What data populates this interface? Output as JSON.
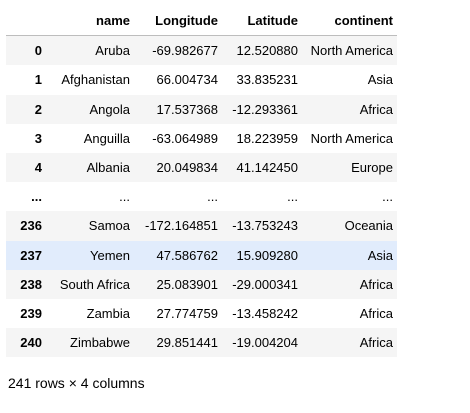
{
  "table": {
    "columns": [
      "name",
      "Longitude",
      "Latitude",
      "continent"
    ],
    "rows": [
      {
        "index": "0",
        "name": "Aruba",
        "longitude": "-69.982677",
        "latitude": "12.520880",
        "continent": "North America"
      },
      {
        "index": "1",
        "name": "Afghanistan",
        "longitude": "66.004734",
        "latitude": "33.835231",
        "continent": "Asia"
      },
      {
        "index": "2",
        "name": "Angola",
        "longitude": "17.537368",
        "latitude": "-12.293361",
        "continent": "Africa"
      },
      {
        "index": "3",
        "name": "Anguilla",
        "longitude": "-63.064989",
        "latitude": "18.223959",
        "continent": "North America"
      },
      {
        "index": "4",
        "name": "Albania",
        "longitude": "20.049834",
        "latitude": "41.142450",
        "continent": "Europe"
      },
      {
        "index": "...",
        "name": "...",
        "longitude": "...",
        "latitude": "...",
        "continent": "..."
      },
      {
        "index": "236",
        "name": "Samoa",
        "longitude": "-172.164851",
        "latitude": "-13.753243",
        "continent": "Oceania"
      },
      {
        "index": "237",
        "name": "Yemen",
        "longitude": "47.586762",
        "latitude": "15.909280",
        "continent": "Asia"
      },
      {
        "index": "238",
        "name": "South Africa",
        "longitude": "25.083901",
        "latitude": "-29.000341",
        "continent": "Africa"
      },
      {
        "index": "239",
        "name": "Zambia",
        "longitude": "27.774759",
        "latitude": "-13.458242",
        "continent": "Africa"
      },
      {
        "index": "240",
        "name": "Zimbabwe",
        "longitude": "29.851441",
        "latitude": "-19.004204",
        "continent": "Africa"
      }
    ],
    "hovered_row": 7
  },
  "shape_text": "241 rows × 4 columns"
}
